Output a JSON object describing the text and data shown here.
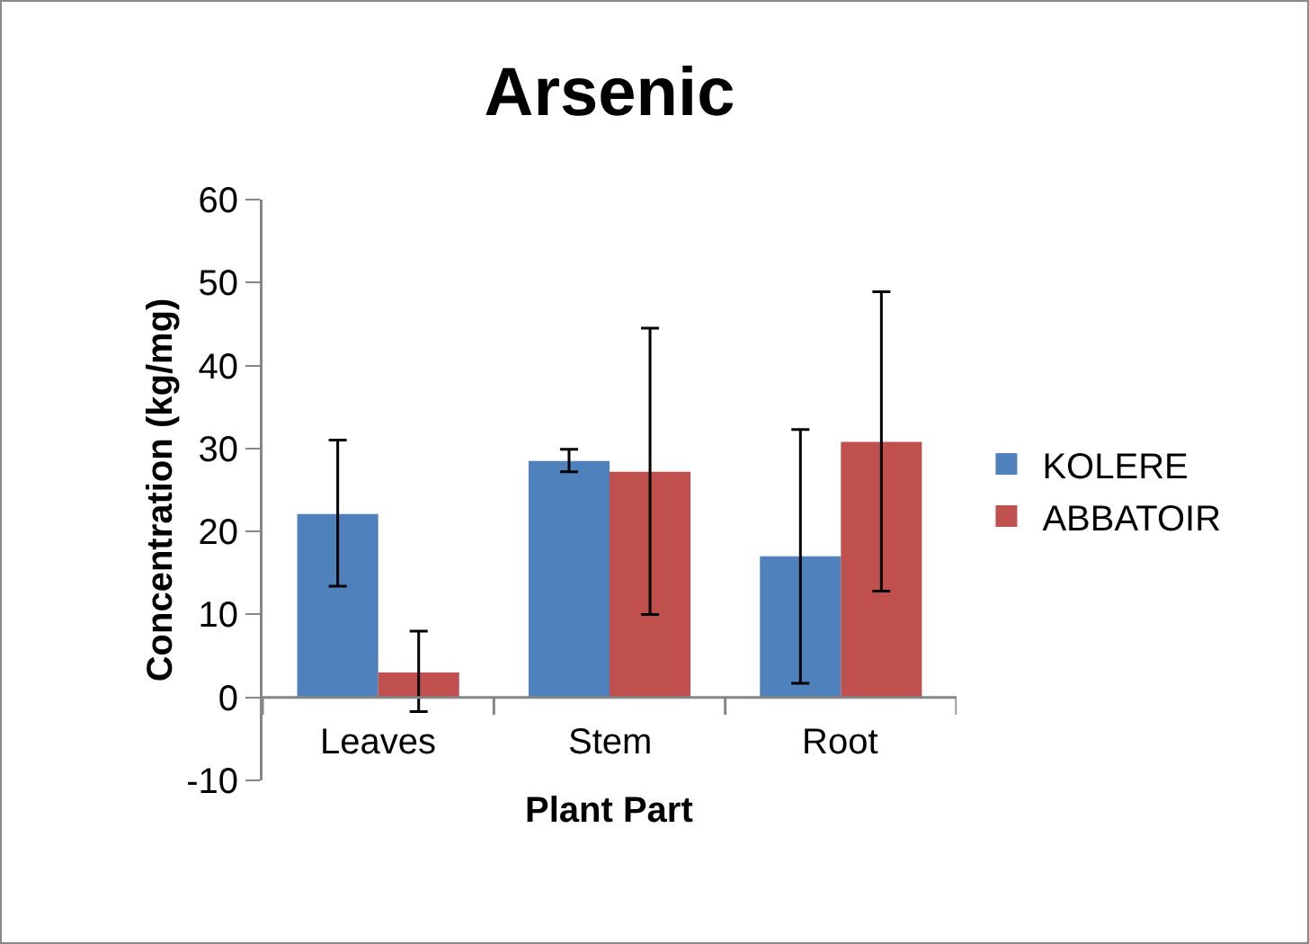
{
  "chart_data": {
    "type": "bar",
    "title": "Arsenic",
    "xlabel": "Plant Part",
    "ylabel": "Concentration (kg/mg)",
    "categories": [
      "Leaves",
      "Stem",
      "Root"
    ],
    "series": [
      {
        "name": "KOLERE",
        "color": "#4f81bd",
        "values": [
          22.1,
          28.5,
          17.0
        ],
        "errors": [
          [
            13.4,
            31.0
          ],
          [
            27.2,
            29.9
          ],
          [
            1.7,
            32.3
          ]
        ]
      },
      {
        "name": "ABBATOIR",
        "color": "#c0504d",
        "values": [
          3.0,
          27.2,
          30.8
        ],
        "errors": [
          [
            -1.7,
            8.0
          ],
          [
            10.0,
            44.5
          ],
          [
            12.8,
            48.9
          ]
        ]
      }
    ],
    "ylim": [
      -10,
      60
    ],
    "yticks": [
      -10,
      0,
      10,
      20,
      30,
      40,
      50,
      60
    ],
    "grid": false,
    "legend": "right"
  }
}
